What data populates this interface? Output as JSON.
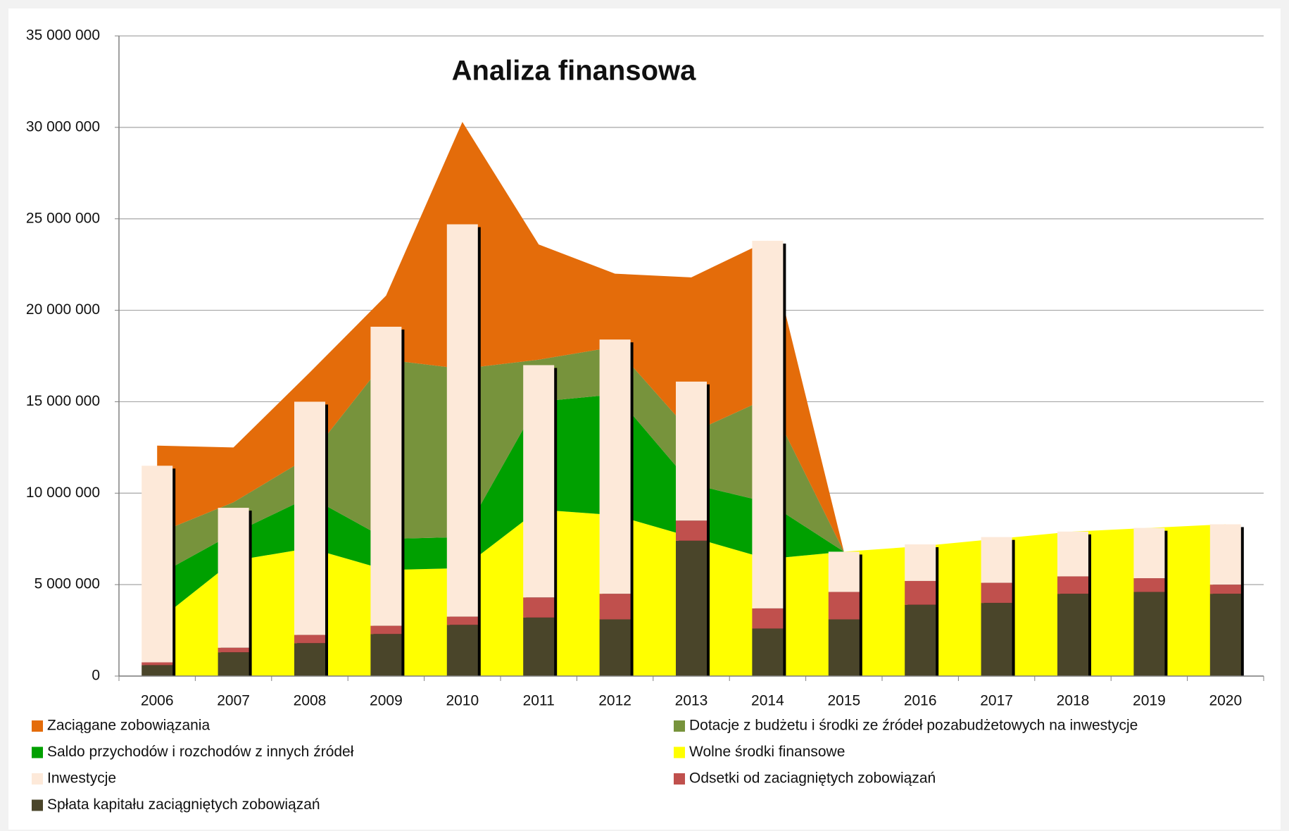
{
  "chart_data": {
    "type": "bar",
    "title": "Analiza finansowa",
    "categories": [
      "2006",
      "2007",
      "2008",
      "2009",
      "2010",
      "2011",
      "2012",
      "2013",
      "2014",
      "2015",
      "2016",
      "2017",
      "2018",
      "2019",
      "2020"
    ],
    "series": [
      {
        "name": "Zaciągane zobowiązania",
        "type": "area",
        "color": "#e46c0a",
        "values": [
          4800000,
          3000000,
          4600000,
          3500000,
          13500000,
          6300000,
          4000000,
          8500000,
          8600000,
          0,
          0,
          0,
          0,
          0,
          0
        ]
      },
      {
        "name": "Dotacje z budżetu i środki ze źródeł pozabudżetowych na inwestycje",
        "type": "area",
        "color": "#77933c",
        "values": [
          2300000,
          1700000,
          2200000,
          9800000,
          9200000,
          2300000,
          2600000,
          2800000,
          5700000,
          0,
          0,
          0,
          0,
          0,
          0
        ]
      },
      {
        "name": "Saldo przychodów i rozchodów z innych źródeł",
        "type": "area",
        "color": "#00a000",
        "values": [
          2500000,
          1500000,
          2800000,
          1700000,
          1700000,
          5900000,
          6600000,
          2900000,
          3100000,
          0,
          0,
          0,
          0,
          0,
          0
        ]
      },
      {
        "name": "Wolne środki finansowe",
        "type": "area",
        "color": "#ffff00",
        "values": [
          3000000,
          6300000,
          7000000,
          5800000,
          5900000,
          9100000,
          8800000,
          7600000,
          6400000,
          6800000,
          7100000,
          7500000,
          7900000,
          8100000,
          8300000
        ]
      },
      {
        "name": "Inwestycje",
        "type": "bar",
        "color": "#fde9d9",
        "values": [
          10750000,
          7650000,
          12750000,
          16350000,
          21450000,
          12700000,
          13900000,
          7600000,
          20100000,
          2200000,
          2000000,
          2500000,
          2450000,
          2750000,
          3300000
        ]
      },
      {
        "name": "Odsetki od zaciagniętych zobowiązań",
        "type": "bar",
        "color": "#c0504d",
        "values": [
          150000,
          250000,
          450000,
          450000,
          450000,
          1100000,
          1400000,
          1100000,
          1100000,
          1500000,
          1300000,
          1100000,
          950000,
          750000,
          500000
        ]
      },
      {
        "name": "Spłata kapitału zaciągniętych zobowiązań",
        "type": "bar",
        "color": "#4a452a",
        "values": [
          600000,
          1300000,
          1800000,
          2300000,
          2800000,
          3200000,
          3100000,
          7400000,
          2600000,
          3100000,
          3900000,
          4000000,
          4500000,
          4600000,
          4500000
        ]
      }
    ],
    "ylim": [
      0,
      35000000
    ],
    "yticks": [
      0,
      {
        "value": 5000000,
        "label": "5 000 000"
      },
      {
        "value": 10000000,
        "label": "10 000 000"
      },
      {
        "value": 15000000,
        "label": "15 000 000"
      },
      {
        "value": 20000000,
        "label": "20 000 000"
      },
      {
        "value": 25000000,
        "label": "25 000 000"
      },
      {
        "value": 30000000,
        "label": "30 000 000"
      },
      {
        "value": 35000000,
        "label": "35 000 000"
      }
    ],
    "grid": true
  }
}
